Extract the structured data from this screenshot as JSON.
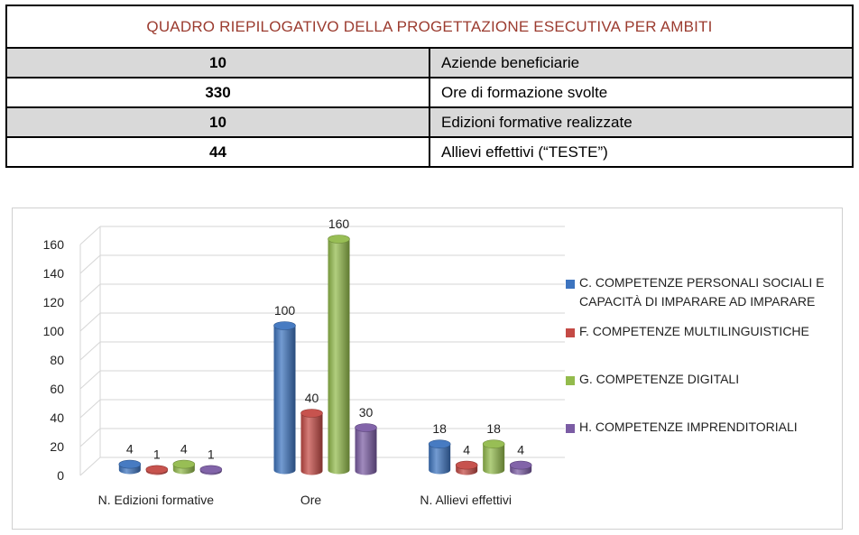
{
  "summary": {
    "title": "QUADRO RIEPILOGATIVO DELLA PROGETTAZIONE ESECUTIVA PER AMBITI",
    "rows": [
      {
        "value": "10",
        "label": "Aziende beneficiarie"
      },
      {
        "value": "330",
        "label": "Ore di formazione svolte"
      },
      {
        "value": "10",
        "label": "Edizioni formative realizzate"
      },
      {
        "value": "44",
        "label": "Allievi effettivi (“TESTE”)"
      }
    ]
  },
  "chart_data": {
    "type": "bar",
    "title": "",
    "xlabel": "",
    "ylabel": "",
    "ylim": [
      0,
      160
    ],
    "yticks": [
      0,
      20,
      40,
      60,
      80,
      100,
      120,
      140,
      160
    ],
    "categories": [
      "N. Edizioni formative",
      "Ore",
      "N. Allievi effettivi"
    ],
    "series": [
      {
        "name": "C. COMPETENZE PERSONALI SOCIALI E CAPACITÀ DI IMPARARE AD IMPARARE",
        "color": "#3d74bf",
        "values": [
          4,
          100,
          18
        ]
      },
      {
        "name": "F. COMPETENZE MULTILINGUISTICHE",
        "color": "#c44a45",
        "values": [
          1,
          40,
          4
        ]
      },
      {
        "name": "G. COMPETENZE DIGITALI",
        "color": "#93bb4c",
        "values": [
          4,
          160,
          18
        ]
      },
      {
        "name": "H. COMPETENZE IMPRENDITORIALI",
        "color": "#7b5ca4",
        "values": [
          1,
          30,
          4
        ]
      }
    ],
    "legend_position": "right",
    "grid": true
  }
}
